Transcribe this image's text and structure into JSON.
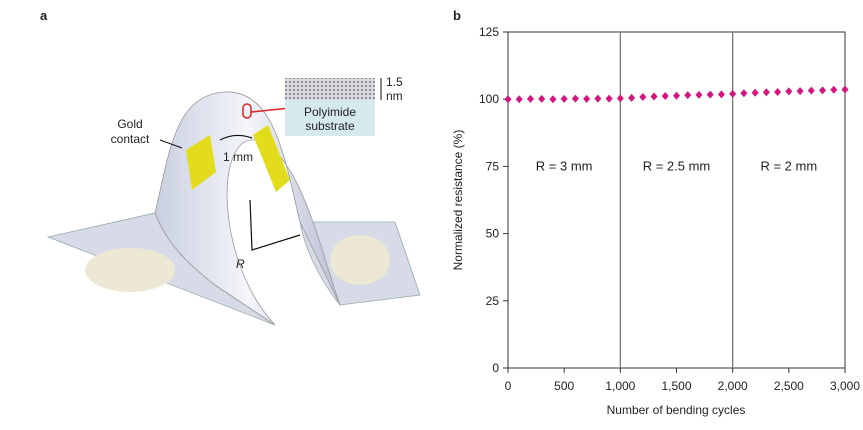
{
  "panel_labels": [
    "a",
    "b"
  ],
  "diagram": {
    "gold_contact": [
      "Gold",
      "contact"
    ],
    "gap_label": "1 mm",
    "thickness": [
      "1.5",
      "nm"
    ],
    "substrate": [
      "Polyimide",
      "substrate"
    ],
    "radius_label": "R"
  },
  "chart_data": {
    "type": "scatter",
    "xlabel": "Number of bending cycles",
    "ylabel": "Normalized resistance (%)",
    "x": [
      0,
      100,
      200,
      300,
      400,
      500,
      600,
      700,
      800,
      900,
      1000,
      1100,
      1200,
      1300,
      1400,
      1500,
      1600,
      1700,
      1800,
      1900,
      2000,
      2100,
      2200,
      2300,
      2400,
      2500,
      2600,
      2700,
      2800,
      2900,
      3000
    ],
    "series": [
      {
        "color": "#d4147f",
        "values": [
          100.0,
          100.0,
          100.1,
          100.1,
          100.0,
          100.1,
          100.2,
          100.1,
          100.2,
          100.2,
          100.3,
          100.5,
          100.8,
          101.0,
          101.2,
          101.3,
          101.5,
          101.6,
          101.7,
          101.8,
          102.0,
          102.2,
          102.4,
          102.6,
          102.7,
          102.9,
          103.0,
          103.2,
          103.3,
          103.5,
          103.6
        ]
      }
    ],
    "xlim": [
      0,
      3000
    ],
    "ylim": [
      0,
      125
    ],
    "xticks": [
      0,
      500,
      {
        "value": 1000,
        "label": "1,000"
      },
      {
        "value": 1500,
        "label": "1,500"
      },
      {
        "value": 2000,
        "label": "2,000"
      },
      {
        "value": 2500,
        "label": "2,500"
      },
      {
        "value": 3000,
        "label": "3,000"
      }
    ],
    "yticks": [
      0,
      25,
      50,
      75,
      100,
      125
    ],
    "vlines": [
      1000,
      2000
    ],
    "annotations": [
      "R = 3 mm",
      "R = 2.5 mm",
      "R = 2 mm"
    ]
  }
}
